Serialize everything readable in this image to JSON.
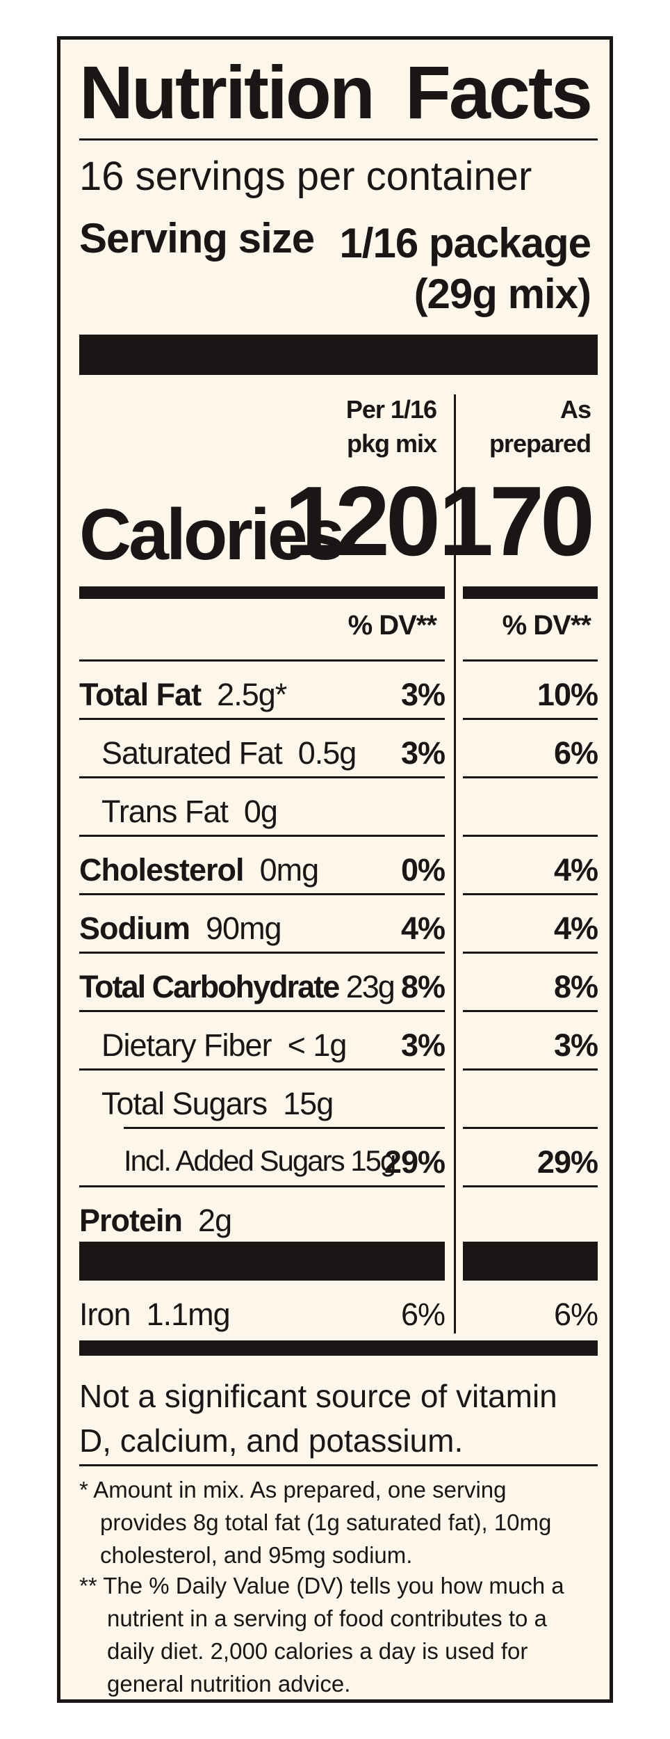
{
  "title_words": [
    "Nutrition",
    "Facts"
  ],
  "servings_per_container": "16 servings per container",
  "serving_size": {
    "label": "Serving size",
    "value_line1": "1/16 package",
    "value_line2": "(29g mix)"
  },
  "columns": {
    "col1_line1": "Per 1/16",
    "col1_line2": "pkg mix",
    "col2_line1": "As",
    "col2_line2": "prepared"
  },
  "calories": {
    "label": "Calories",
    "value1": "120",
    "value2": "170"
  },
  "dv_header": "% DV**",
  "nutrients": [
    {
      "name": "Total Fat",
      "amount": "2.5g*",
      "dv1": "3%",
      "dv2": "10%"
    },
    {
      "name": "Saturated Fat",
      "amount": "0.5g",
      "dv1": "3%",
      "dv2": "6%"
    },
    {
      "name": "Trans Fat",
      "amount": "0g",
      "dv1": "",
      "dv2": ""
    },
    {
      "name": "Cholesterol",
      "amount": "0mg",
      "dv1": "0%",
      "dv2": "4%"
    },
    {
      "name": "Sodium",
      "amount": "90mg",
      "dv1": "4%",
      "dv2": "4%"
    },
    {
      "name": "Total Carbohydrate",
      "amount": "23g",
      "dv1": "8%",
      "dv2": "8%"
    },
    {
      "name": "Dietary Fiber",
      "amount": "< 1g",
      "dv1": "3%",
      "dv2": "3%"
    },
    {
      "name": "Total Sugars",
      "amount": "15g",
      "dv1": "",
      "dv2": ""
    },
    {
      "name": "Incl. Added Sugars",
      "amount": "15g",
      "dv1": "29%",
      "dv2": "29%"
    },
    {
      "name": "Protein",
      "amount": "2g",
      "dv1": "",
      "dv2": ""
    }
  ],
  "iron": {
    "name": "Iron",
    "amount": "1.1mg",
    "dv1": "6%",
    "dv2": "6%"
  },
  "not_significant": "Not a significant source of vitamin D, calcium, and potassium.",
  "footnote1": "* Amount in mix. As prepared, one serving provides 8g total fat (1g saturated fat), 10mg cholesterol, and 95mg sodium.",
  "footnote2": "** The % Daily Value (DV) tells you how much a nutrient in a serving of food contributes to a daily diet. 2,000 calories a day is used for general nutrition advice."
}
